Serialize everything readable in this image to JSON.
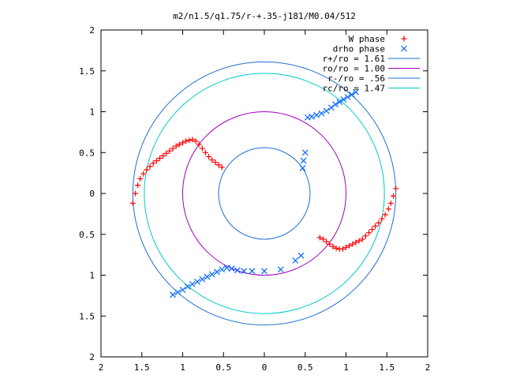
{
  "chart_data": {
    "type": "scatter",
    "title": "m2/n1.5/q1.75/r-+.35-j181/M0.04/512",
    "xlim": [
      -2,
      2
    ],
    "ylim": [
      -2,
      2
    ],
    "x_ticks": [
      {
        "value": -2,
        "label": "2"
      },
      {
        "value": -1.5,
        "label": "1.5"
      },
      {
        "value": -1,
        "label": "1"
      },
      {
        "value": -0.5,
        "label": "0.5"
      },
      {
        "value": 0,
        "label": "0"
      },
      {
        "value": 0.5,
        "label": "0.5"
      },
      {
        "value": 1,
        "label": "1"
      },
      {
        "value": 1.5,
        "label": "1.5"
      },
      {
        "value": 2,
        "label": "2"
      }
    ],
    "y_ticks": [
      {
        "value": 2,
        "label": "2"
      },
      {
        "value": 1.5,
        "label": "1.5"
      },
      {
        "value": 1,
        "label": "1"
      },
      {
        "value": 0.5,
        "label": "0.5"
      },
      {
        "value": 0,
        "label": "0"
      },
      {
        "value": -0.5,
        "label": "0.5"
      },
      {
        "value": -1,
        "label": "1"
      },
      {
        "value": -1.5,
        "label": "1.5"
      },
      {
        "value": -2,
        "label": "2"
      }
    ],
    "legend_position": "top-right",
    "series": [
      {
        "name": "W phase",
        "kind": "points",
        "marker": "plus",
        "color": "#ff0000",
        "x": [
          -1.61,
          -1.58,
          -1.55,
          -1.52,
          -1.48,
          -1.44,
          -1.4,
          -1.36,
          -1.32,
          -1.28,
          -1.24,
          -1.2,
          -1.16,
          -1.12,
          -1.08,
          -1.04,
          -1.0,
          -0.96,
          -0.92,
          -0.88,
          -0.84,
          -0.8,
          -0.76,
          -0.72,
          -0.68,
          -0.64,
          -0.6,
          -0.56,
          -0.52,
          1.61,
          1.58,
          1.55,
          1.52,
          1.48,
          1.44,
          1.4,
          1.36,
          1.32,
          1.28,
          1.24,
          1.2,
          1.16,
          1.12,
          1.08,
          1.04,
          1.0,
          0.96,
          0.92,
          0.88,
          0.84,
          0.8,
          0.76,
          0.72,
          0.68
        ],
        "y": [
          -0.12,
          0.0,
          0.1,
          0.18,
          0.24,
          0.29,
          0.33,
          0.37,
          0.4,
          0.43,
          0.46,
          0.49,
          0.52,
          0.55,
          0.58,
          0.6,
          0.62,
          0.64,
          0.65,
          0.66,
          0.64,
          0.6,
          0.55,
          0.5,
          0.45,
          0.41,
          0.38,
          0.35,
          0.32,
          0.06,
          -0.03,
          -0.12,
          -0.19,
          -0.26,
          -0.31,
          -0.36,
          -0.4,
          -0.44,
          -0.48,
          -0.52,
          -0.56,
          -0.58,
          -0.6,
          -0.62,
          -0.64,
          -0.66,
          -0.68,
          -0.68,
          -0.67,
          -0.65,
          -0.62,
          -0.59,
          -0.56,
          -0.54
        ]
      },
      {
        "name": "drho phase",
        "kind": "points",
        "marker": "cross",
        "color": "#0066ff",
        "x": [
          -1.12,
          -1.06,
          -1.0,
          -0.94,
          -0.88,
          -0.82,
          -0.76,
          -0.7,
          -0.64,
          -0.58,
          -0.52,
          -0.46,
          -0.4,
          -0.33,
          -0.25,
          -0.15,
          0.0,
          0.2,
          0.38,
          0.45,
          1.12,
          1.07,
          1.02,
          0.97,
          0.92,
          0.87,
          0.82,
          0.76,
          0.7,
          0.64,
          0.58,
          0.53,
          0.5,
          0.48,
          0.47
        ],
        "y": [
          -1.24,
          -1.21,
          -1.18,
          -1.14,
          -1.11,
          -1.08,
          -1.05,
          -1.02,
          -0.99,
          -0.96,
          -0.93,
          -0.91,
          -0.92,
          -0.94,
          -0.95,
          -0.95,
          -0.95,
          -0.93,
          -0.82,
          -0.76,
          1.24,
          1.21,
          1.18,
          1.15,
          1.12,
          1.09,
          1.05,
          1.01,
          0.98,
          0.96,
          0.94,
          0.93,
          0.5,
          0.4,
          0.31
        ]
      },
      {
        "name": "r+/ro = 1.61",
        "kind": "circle",
        "radius": 1.61,
        "color": "#1f6fd0"
      },
      {
        "name": "ro/ro = 1.00",
        "kind": "circle",
        "radius": 1.0,
        "color": "#a000c0"
      },
      {
        "name": "r-/ro = .56",
        "kind": "circle",
        "radius": 0.56,
        "color": "#1f6fd0"
      },
      {
        "name": "rc/ro = 1.47",
        "kind": "circle",
        "radius": 1.47,
        "color": "#00c8c8"
      }
    ]
  }
}
